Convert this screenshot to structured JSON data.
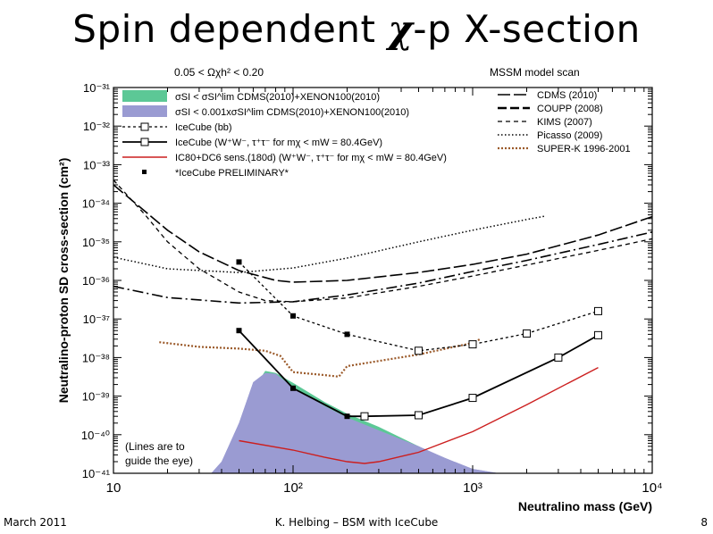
{
  "slide": {
    "title_pre": "Spin dependent ",
    "title_chi": "χ",
    "title_post": "-p X-section",
    "footer_left": "March 2011",
    "footer_center": "K. Helbing – BSM with IceCube",
    "footer_right": "8"
  },
  "chart_data": {
    "type": "line",
    "title": "",
    "xlabel": "Neutralino mass (GeV)",
    "ylabel": "Neutralino-proton SD cross-section (cm²)",
    "xscale": "log",
    "yscale": "log",
    "xlim": [
      10,
      10000
    ],
    "ylim": [
      1e-41,
      1e-31
    ],
    "x_ticks": [
      "10",
      "10²",
      "10³",
      "10⁴"
    ],
    "y_ticks": [
      "10⁻⁴¹",
      "10⁻⁴⁰",
      "10⁻³⁹",
      "10⁻³⁸",
      "10⁻³⁷",
      "10⁻³⁶",
      "10⁻³⁵",
      "10⁻³⁴",
      "10⁻³³",
      "10⁻³²",
      "10⁻³¹"
    ],
    "header_left": "0.05 < Ωχh² < 0.20",
    "header_right": "MSSM model scan",
    "annotation": "(Lines are to guide the eye)",
    "annotation_lines": [
      "(Lines are to",
      "guide the eye)"
    ],
    "legend_left": [
      {
        "label": "σSI < σSI^lim CDMS(2010)+XENON100(2010)",
        "style": "fill-green",
        "color": "#5cc896"
      },
      {
        "label": "σSI < 0.001xσSI^lim CDMS(2010)+XENON100(2010)",
        "style": "fill-blue",
        "color": "#9a9bd2"
      },
      {
        "label": "IceCube (bb)",
        "style": "dashed-square"
      },
      {
        "label": "IceCube (W⁺W⁻, τ⁺τ⁻ for mχ < mW = 80.4GeV)",
        "style": "solid-square"
      },
      {
        "label": "IC80+DC6 sens.(180d) (W⁺W⁻, τ⁺τ⁻ for mχ < mW = 80.4GeV)",
        "style": "solid-red",
        "color": "#cc1f1f"
      },
      {
        "label": "*IceCube PRELIMINARY*",
        "style": "filled-square"
      }
    ],
    "legend_right": [
      {
        "label": "CDMS (2010)",
        "style": "longdash"
      },
      {
        "label": "COUPP (2008)",
        "style": "thickdash"
      },
      {
        "label": "KIMS (2007)",
        "style": "dash"
      },
      {
        "label": "Picasso (2009)",
        "style": "dot"
      },
      {
        "label": "SUPER-K 1996-2001",
        "style": "dot-brown",
        "color": "#9b5a2a"
      }
    ],
    "series": [
      {
        "key": "icecube_bb",
        "color": "#000000",
        "x": [
          50,
          100,
          200,
          500,
          1000,
          2000,
          5000
        ],
        "y": [
          3e-36,
          1.2e-37,
          4e-38,
          1.5e-38,
          2.2e-38,
          4.2e-38,
          1.6e-37
        ],
        "markers": [
          "filled",
          "filled",
          "filled",
          "open",
          "open",
          "open",
          "open"
        ]
      },
      {
        "key": "icecube_ww",
        "color": "#000000",
        "x": [
          50,
          100,
          200,
          250,
          500,
          1000,
          3000,
          5000
        ],
        "y": [
          5e-38,
          1.6e-39,
          3e-40,
          3e-40,
          3.2e-40,
          9e-40,
          1e-38,
          3.8e-38
        ],
        "markers": [
          "filled",
          "filled",
          "filled",
          "open",
          "open",
          "open",
          "open",
          "open"
        ]
      },
      {
        "key": "ic80_dc6",
        "color": "#cc1f1f",
        "x": [
          50,
          100,
          150,
          200,
          250,
          300,
          500,
          1000,
          2000,
          5000
        ],
        "y": [
          7e-41,
          4e-41,
          2.6e-41,
          2e-41,
          1.8e-41,
          2e-41,
          3.5e-41,
          1.2e-40,
          6e-40,
          5.5e-39
        ]
      },
      {
        "key": "cdms",
        "color": "#000000",
        "x": [
          10,
          20,
          30,
          50,
          80,
          100,
          200,
          500,
          1000,
          2000,
          5000,
          10000
        ],
        "y": [
          3e-34,
          2e-35,
          5.5e-36,
          1.8e-36,
          1e-36,
          9e-37,
          1e-36,
          1.6e-36,
          2.6e-36,
          4.8e-36,
          1.5e-35,
          4.5e-35
        ]
      },
      {
        "key": "coupp",
        "color": "#000000",
        "x": [
          10,
          20,
          50,
          100,
          200,
          500,
          1000,
          2000,
          5000,
          10000
        ],
        "y": [
          7e-37,
          3.6e-37,
          2.6e-37,
          2.8e-37,
          4.2e-37,
          8.5e-37,
          1.7e-36,
          3.3e-36,
          8.5e-36,
          1.8e-35
        ]
      },
      {
        "key": "kims",
        "color": "#000000",
        "x": [
          10,
          15,
          20,
          30,
          50,
          70,
          100,
          200,
          500,
          1000,
          2000,
          5000,
          10000
        ],
        "y": [
          4e-34,
          5e-35,
          1e-35,
          2e-36,
          5e-37,
          3e-37,
          2.8e-37,
          3.5e-37,
          7e-37,
          1.3e-36,
          2.5e-36,
          6e-36,
          1.2e-35
        ]
      },
      {
        "key": "picasso",
        "color": "#000000",
        "x": [
          10,
          20,
          50,
          100,
          200,
          500,
          1000,
          2000,
          2500
        ],
        "y": [
          4e-36,
          2e-36,
          1.6e-36,
          2.1e-36,
          3.8e-36,
          1e-35,
          2e-35,
          3.8e-35,
          4.6e-35
        ]
      },
      {
        "key": "superk",
        "color": "#9b5a2a",
        "x": [
          18,
          30,
          50,
          70,
          85,
          100,
          150,
          180,
          200,
          500,
          1000,
          1100
        ],
        "y": [
          2.5e-38,
          1.9e-38,
          1.7e-38,
          1.5e-38,
          1.1e-38,
          4.2e-39,
          3.5e-39,
          3.2e-39,
          6e-39,
          1.2e-38,
          2.4e-38,
          3e-38
        ]
      },
      {
        "key": "scan_green",
        "color": "#5cc896",
        "x": [
          40,
          50,
          60,
          70,
          80,
          100,
          150,
          200,
          300,
          500,
          700,
          1000
        ],
        "y": [
          1e-41,
          1.5e-40,
          1.5e-39,
          4.5e-39,
          4e-39,
          2.2e-39,
          7e-40,
          3.5e-40,
          1.6e-40,
          5e-41,
          2e-41,
          1e-41
        ]
      },
      {
        "key": "scan_blue",
        "color": "#9a9bd2",
        "x": [
          35,
          40,
          50,
          60,
          70,
          80,
          100,
          150,
          200,
          300,
          500,
          700,
          1000,
          1400
        ],
        "y": [
          1e-41,
          2e-41,
          2e-40,
          2.3e-39,
          4e-39,
          3.8e-39,
          1.7e-39,
          5.5e-40,
          2.8e-40,
          1.3e-40,
          5e-41,
          2.5e-41,
          1.3e-41,
          1e-41
        ]
      }
    ]
  }
}
